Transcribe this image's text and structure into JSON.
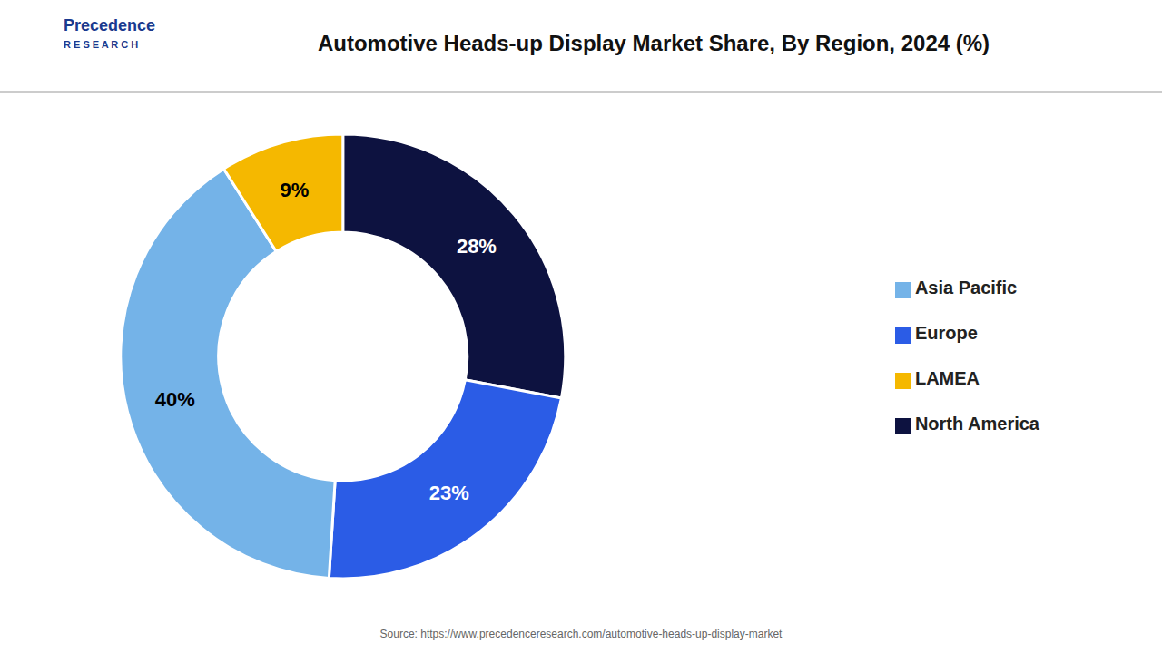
{
  "chart_data": {
    "type": "pie",
    "title": "Automotive Heads-up Display Market Share, By Region, 2024 (%)",
    "categories": [
      "North America",
      "Europe",
      "Asia Pacific",
      "LAMEA"
    ],
    "values": [
      28,
      23,
      40,
      9
    ],
    "value_labels": [
      "28%",
      "23%",
      "40%",
      "9%"
    ],
    "colors": [
      "#0d1240",
      "#2b5ce6",
      "#74b3e8",
      "#f5b800"
    ],
    "data_labels": true,
    "legend": "right",
    "annotations": [
      "Precedence",
      "R E S E A R C H",
      "Source: https://www.precedenceresearch.com/automotive-heads-up-display-market"
    ]
  }
}
